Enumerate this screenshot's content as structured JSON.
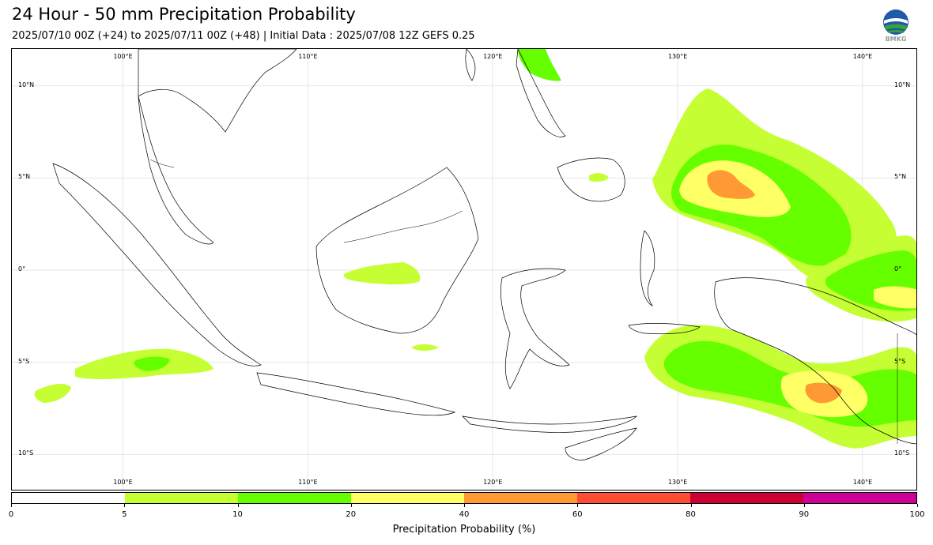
{
  "header": {
    "title": "24 Hour - 50 mm Precipitation Probability",
    "subtitle": "2025/07/10 00Z (+24) to 2025/07/11 00Z (+48) | Initial Data : 2025/07/08 12Z GEFS 0.25",
    "logo_text": "BMKG"
  },
  "map": {
    "extent": {
      "lon": [
        94,
        143
      ],
      "lat": [
        -12,
        12
      ]
    },
    "lon_labels_top": [
      {
        "lon": 100,
        "text": "100°E"
      },
      {
        "lon": 110,
        "text": "110°E"
      },
      {
        "lon": 120,
        "text": "120°E"
      },
      {
        "lon": 130,
        "text": "130°E"
      },
      {
        "lon": 140,
        "text": "140°E"
      }
    ],
    "lon_labels_bottom": [
      {
        "lon": 100,
        "text": "100°E"
      },
      {
        "lon": 110,
        "text": "110°E"
      },
      {
        "lon": 120,
        "text": "120°E"
      },
      {
        "lon": 130,
        "text": "130°E"
      },
      {
        "lon": 140,
        "text": "140°E"
      }
    ],
    "lat_labels": [
      {
        "lat": 10,
        "text": "10°N"
      },
      {
        "lat": 5,
        "text": "5°N"
      },
      {
        "lat": 0,
        "text": "0°"
      },
      {
        "lat": -5,
        "text": "5°S"
      },
      {
        "lat": -10,
        "text": "10°S"
      }
    ]
  },
  "colorbar": {
    "ticks": [
      "0",
      "5",
      "10",
      "20",
      "40",
      "60",
      "80",
      "90",
      "100"
    ],
    "colors": [
      "#ffffff",
      "#c5ff33",
      "#66ff00",
      "#ffff66",
      "#ff9933",
      "#ff4d33",
      "#cc0033",
      "#cc0099"
    ],
    "label": "Precipitation Probability (%)"
  }
}
